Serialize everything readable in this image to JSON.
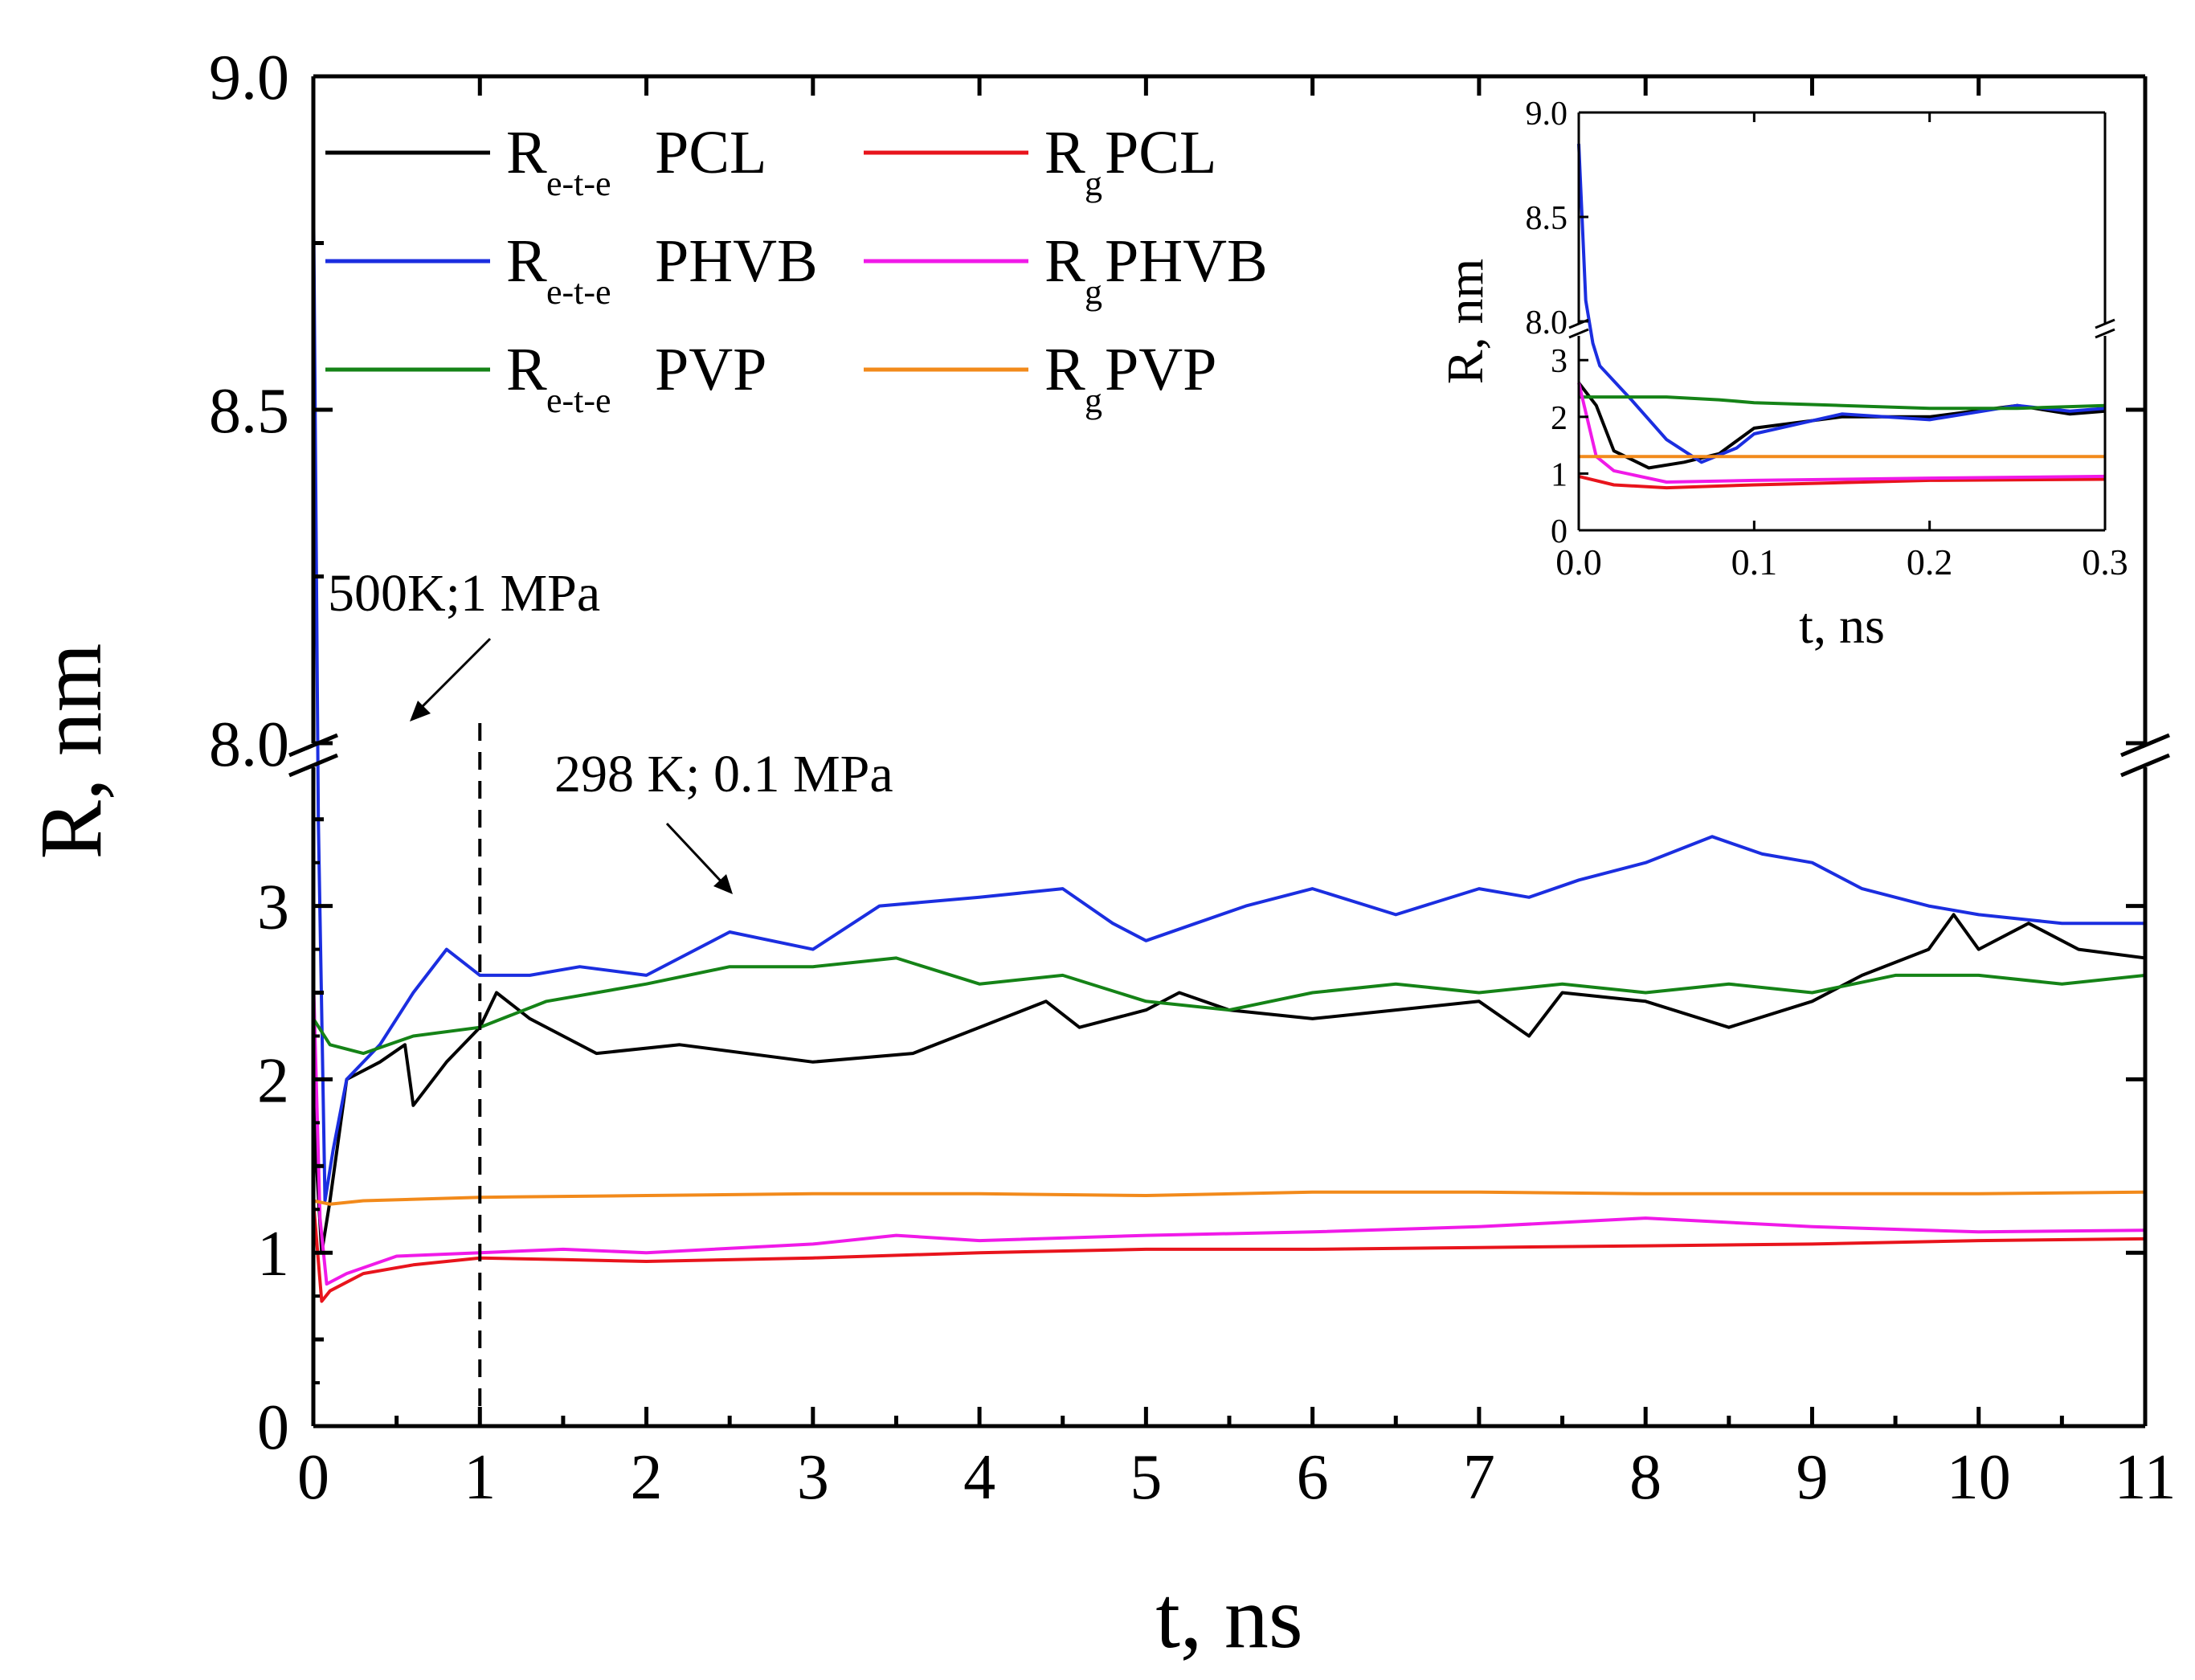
{
  "chart_data": [
    {
      "type": "line",
      "x_label": "t, ns",
      "y_label": "R, nm",
      "x_range": [
        0,
        11
      ],
      "x_ticks": [
        "0",
        "1",
        "2",
        "3",
        "4",
        "5",
        "6",
        "7",
        "8",
        "9",
        "10",
        "11"
      ],
      "y_axis_break": {
        "lower_segment": [
          0,
          3.8
        ],
        "upper_segment": [
          8.0,
          9.0
        ]
      },
      "y_ticks_lower": [
        "0",
        "1",
        "2",
        "3"
      ],
      "y_ticks_upper": [
        "8.0",
        "8.5",
        "9.0"
      ],
      "grid": false,
      "legend_position": "top",
      "annotations": [
        {
          "text": "500K;1 MPa"
        },
        {
          "text": "298 K; 0.1 MPa"
        }
      ],
      "vertical_marker": {
        "x": 1,
        "style": "dashed"
      },
      "series": [
        {
          "name": "Re-t-e PCL",
          "symbol": "R",
          "subscript": "e-t-e",
          "polymer": "PCL",
          "color": "#000000",
          "points": [
            [
              0,
              2.6
            ],
            [
              0.02,
              1.5
            ],
            [
              0.05,
              1.0
            ],
            [
              0.1,
              1.3
            ],
            [
              0.2,
              2.0
            ],
            [
              0.4,
              2.1
            ],
            [
              0.55,
              2.2
            ],
            [
              0.6,
              1.85
            ],
            [
              0.8,
              2.1
            ],
            [
              1.0,
              2.3
            ],
            [
              1.1,
              2.5
            ],
            [
              1.3,
              2.35
            ],
            [
              1.7,
              2.15
            ],
            [
              2.2,
              2.2
            ],
            [
              3.0,
              2.1
            ],
            [
              3.6,
              2.15
            ],
            [
              4.0,
              2.3
            ],
            [
              4.4,
              2.45
            ],
            [
              4.6,
              2.3
            ],
            [
              5.0,
              2.4
            ],
            [
              5.2,
              2.5
            ],
            [
              5.5,
              2.4
            ],
            [
              6.0,
              2.35
            ],
            [
              6.5,
              2.4
            ],
            [
              7.0,
              2.45
            ],
            [
              7.3,
              2.25
            ],
            [
              7.5,
              2.5
            ],
            [
              8.0,
              2.45
            ],
            [
              8.5,
              2.3
            ],
            [
              9.0,
              2.45
            ],
            [
              9.3,
              2.6
            ],
            [
              9.7,
              2.75
            ],
            [
              9.85,
              2.95
            ],
            [
              10.0,
              2.75
            ],
            [
              10.3,
              2.9
            ],
            [
              10.6,
              2.75
            ],
            [
              11.0,
              2.7
            ]
          ]
        },
        {
          "name": "Rg PCL",
          "symbol": "R",
          "subscript": "g",
          "polymer": "PCL",
          "color": "#e8141c",
          "points": [
            [
              0,
              1.3
            ],
            [
              0.05,
              0.72
            ],
            [
              0.1,
              0.78
            ],
            [
              0.3,
              0.88
            ],
            [
              0.6,
              0.93
            ],
            [
              1.0,
              0.97
            ],
            [
              1.5,
              0.96
            ],
            [
              2.0,
              0.95
            ],
            [
              3.0,
              0.97
            ],
            [
              4.0,
              1.0
            ],
            [
              5.0,
              1.02
            ],
            [
              6.0,
              1.02
            ],
            [
              7.0,
              1.03
            ],
            [
              8.0,
              1.04
            ],
            [
              9.0,
              1.05
            ],
            [
              10.0,
              1.07
            ],
            [
              11.0,
              1.08
            ]
          ]
        },
        {
          "name": "Re-t-e PHVB",
          "symbol": "R",
          "subscript": "e-t-e",
          "polymer": "PHVB",
          "color": "#1b2ee0",
          "points": [
            [
              0,
              8.85
            ],
            [
              0.03,
              3.5
            ],
            [
              0.07,
              1.3
            ],
            [
              0.12,
              1.6
            ],
            [
              0.2,
              2.0
            ],
            [
              0.4,
              2.2
            ],
            [
              0.6,
              2.5
            ],
            [
              0.8,
              2.75
            ],
            [
              1.0,
              2.6
            ],
            [
              1.3,
              2.6
            ],
            [
              1.6,
              2.65
            ],
            [
              2.0,
              2.6
            ],
            [
              2.5,
              2.85
            ],
            [
              3.0,
              2.75
            ],
            [
              3.4,
              3.0
            ],
            [
              4.0,
              3.05
            ],
            [
              4.5,
              3.1
            ],
            [
              4.8,
              2.9
            ],
            [
              5.0,
              2.8
            ],
            [
              5.3,
              2.9
            ],
            [
              5.6,
              3.0
            ],
            [
              6.0,
              3.1
            ],
            [
              6.5,
              2.95
            ],
            [
              7.0,
              3.1
            ],
            [
              7.3,
              3.05
            ],
            [
              7.6,
              3.15
            ],
            [
              8.0,
              3.25
            ],
            [
              8.4,
              3.4
            ],
            [
              8.7,
              3.3
            ],
            [
              9.0,
              3.25
            ],
            [
              9.3,
              3.1
            ],
            [
              9.7,
              3.0
            ],
            [
              10.0,
              2.95
            ],
            [
              10.5,
              2.9
            ],
            [
              11.0,
              2.9
            ]
          ]
        },
        {
          "name": "Rg PHVB",
          "symbol": "R",
          "subscript": "g",
          "polymer": "PHVB",
          "color": "#f01ae8",
          "points": [
            [
              0,
              2.6
            ],
            [
              0.04,
              1.2
            ],
            [
              0.08,
              0.82
            ],
            [
              0.2,
              0.88
            ],
            [
              0.5,
              0.98
            ],
            [
              1.0,
              1.0
            ],
            [
              1.5,
              1.02
            ],
            [
              2.0,
              1.0
            ],
            [
              3.0,
              1.05
            ],
            [
              3.5,
              1.1
            ],
            [
              4.0,
              1.07
            ],
            [
              5.0,
              1.1
            ],
            [
              6.0,
              1.12
            ],
            [
              7.0,
              1.15
            ],
            [
              8.0,
              1.2
            ],
            [
              9.0,
              1.15
            ],
            [
              10.0,
              1.12
            ],
            [
              11.0,
              1.13
            ]
          ]
        },
        {
          "name": "Re-t-e PVP",
          "symbol": "R",
          "subscript": "e-t-e",
          "polymer": "PVP",
          "color": "#158317",
          "points": [
            [
              0,
              2.35
            ],
            [
              0.1,
              2.2
            ],
            [
              0.3,
              2.15
            ],
            [
              0.6,
              2.25
            ],
            [
              1.0,
              2.3
            ],
            [
              1.4,
              2.45
            ],
            [
              2.0,
              2.55
            ],
            [
              2.5,
              2.65
            ],
            [
              3.0,
              2.65
            ],
            [
              3.5,
              2.7
            ],
            [
              4.0,
              2.55
            ],
            [
              4.5,
              2.6
            ],
            [
              5.0,
              2.45
            ],
            [
              5.5,
              2.4
            ],
            [
              6.0,
              2.5
            ],
            [
              6.5,
              2.55
            ],
            [
              7.0,
              2.5
            ],
            [
              7.5,
              2.55
            ],
            [
              8.0,
              2.5
            ],
            [
              8.5,
              2.55
            ],
            [
              9.0,
              2.5
            ],
            [
              9.5,
              2.6
            ],
            [
              10.0,
              2.6
            ],
            [
              10.5,
              2.55
            ],
            [
              11.0,
              2.6
            ]
          ]
        },
        {
          "name": "Rg PVP",
          "symbol": "R",
          "subscript": "g",
          "polymer": "PVP",
          "color": "#f28a1b",
          "points": [
            [
              0,
              1.3
            ],
            [
              0.1,
              1.28
            ],
            [
              0.3,
              1.3
            ],
            [
              1.0,
              1.32
            ],
            [
              2.0,
              1.33
            ],
            [
              3.0,
              1.34
            ],
            [
              4.0,
              1.34
            ],
            [
              5.0,
              1.33
            ],
            [
              6.0,
              1.35
            ],
            [
              7.0,
              1.35
            ],
            [
              8.0,
              1.34
            ],
            [
              9.0,
              1.34
            ],
            [
              10.0,
              1.34
            ],
            [
              11.0,
              1.35
            ]
          ]
        }
      ]
    },
    {
      "type": "line",
      "inset": true,
      "x_label": "t, ns",
      "y_label": "R, nm",
      "x_range": [
        0,
        0.3
      ],
      "x_ticks": [
        "0.0",
        "0.1",
        "0.2",
        "0.3"
      ],
      "y_ticks_lower": [
        "0",
        "1",
        "2",
        "3"
      ],
      "y_ticks_upper": [
        "8.0",
        "8.5",
        "9.0"
      ],
      "y_axis_break": {
        "lower_segment": [
          0,
          3.4
        ],
        "upper_segment": [
          8.0,
          9.0
        ]
      },
      "series": [
        {
          "name": "Re-t-e PCL",
          "color": "#000000",
          "points": [
            [
              0,
              2.6
            ],
            [
              0.01,
              2.2
            ],
            [
              0.02,
              1.4
            ],
            [
              0.04,
              1.1
            ],
            [
              0.06,
              1.2
            ],
            [
              0.08,
              1.35
            ],
            [
              0.1,
              1.8
            ],
            [
              0.15,
              2.0
            ],
            [
              0.2,
              2.0
            ],
            [
              0.25,
              2.2
            ],
            [
              0.28,
              2.05
            ],
            [
              0.3,
              2.1
            ]
          ]
        },
        {
          "name": "Re-t-e PHVB",
          "color": "#1b2ee0",
          "points": [
            [
              0,
              8.85
            ],
            [
              0.004,
              8.1
            ],
            [
              0.008,
              3.3
            ],
            [
              0.012,
              2.9
            ],
            [
              0.03,
              2.3
            ],
            [
              0.05,
              1.6
            ],
            [
              0.07,
              1.2
            ],
            [
              0.09,
              1.45
            ],
            [
              0.1,
              1.7
            ],
            [
              0.15,
              2.05
            ],
            [
              0.2,
              1.95
            ],
            [
              0.25,
              2.2
            ],
            [
              0.28,
              2.1
            ],
            [
              0.3,
              2.15
            ]
          ]
        },
        {
          "name": "Re-t-e PVP",
          "color": "#158317",
          "points": [
            [
              0,
              2.35
            ],
            [
              0.05,
              2.35
            ],
            [
              0.08,
              2.3
            ],
            [
              0.1,
              2.25
            ],
            [
              0.15,
              2.2
            ],
            [
              0.2,
              2.15
            ],
            [
              0.25,
              2.15
            ],
            [
              0.3,
              2.2
            ]
          ]
        },
        {
          "name": "Rg PCL",
          "color": "#e8141c",
          "points": [
            [
              0,
              0.95
            ],
            [
              0.02,
              0.8
            ],
            [
              0.05,
              0.75
            ],
            [
              0.1,
              0.8
            ],
            [
              0.2,
              0.88
            ],
            [
              0.3,
              0.9
            ]
          ]
        },
        {
          "name": "Rg PHVB",
          "color": "#f01ae8",
          "points": [
            [
              0,
              2.6
            ],
            [
              0.01,
              1.3
            ],
            [
              0.02,
              1.05
            ],
            [
              0.05,
              0.85
            ],
            [
              0.1,
              0.88
            ],
            [
              0.2,
              0.92
            ],
            [
              0.3,
              0.95
            ]
          ]
        },
        {
          "name": "Rg PVP",
          "color": "#f28a1b",
          "points": [
            [
              0,
              1.3
            ],
            [
              0.05,
              1.3
            ],
            [
              0.1,
              1.3
            ],
            [
              0.2,
              1.3
            ],
            [
              0.3,
              1.3
            ]
          ]
        }
      ]
    }
  ]
}
